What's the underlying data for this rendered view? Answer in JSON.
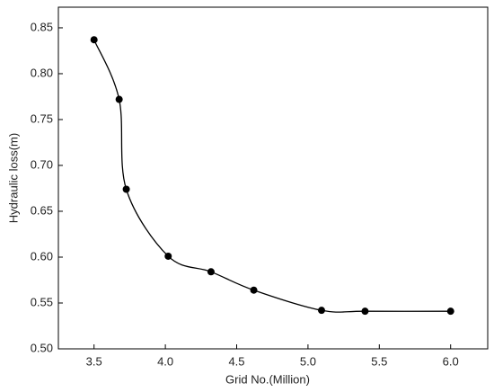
{
  "chart_data": {
    "type": "line",
    "x_label": "Grid No.(Million)",
    "y_label": "Hydraulic loss(m)",
    "x": [
      3.5,
      3.676,
      3.726,
      4.02,
      4.32,
      4.62,
      5.095,
      5.4,
      6.0
    ],
    "series": [
      {
        "color": "#000000",
        "values": [
          0.837,
          0.772,
          0.674,
          0.601,
          0.584,
          0.564,
          0.542,
          0.541,
          0.541
        ]
      }
    ],
    "xlim": [
      3.25,
      6.26
    ],
    "xticks": [
      3.5,
      {
        "value": 4,
        "label": "4.0"
      },
      4.5,
      {
        "value": 5,
        "label": "5.0"
      },
      5.5,
      {
        "value": 6,
        "label": "6.0"
      }
    ],
    "ylim": [
      0.5,
      0.8725
    ],
    "yticks": [
      {
        "value": 0.5,
        "label": "0.50"
      },
      0.55,
      {
        "value": 0.6,
        "label": "0.60"
      },
      0.65,
      {
        "value": 0.7,
        "label": "0.70"
      },
      0.75,
      {
        "value": 0.8,
        "label": "0.80"
      },
      0.85
    ],
    "smooth": true,
    "markers": true
  }
}
